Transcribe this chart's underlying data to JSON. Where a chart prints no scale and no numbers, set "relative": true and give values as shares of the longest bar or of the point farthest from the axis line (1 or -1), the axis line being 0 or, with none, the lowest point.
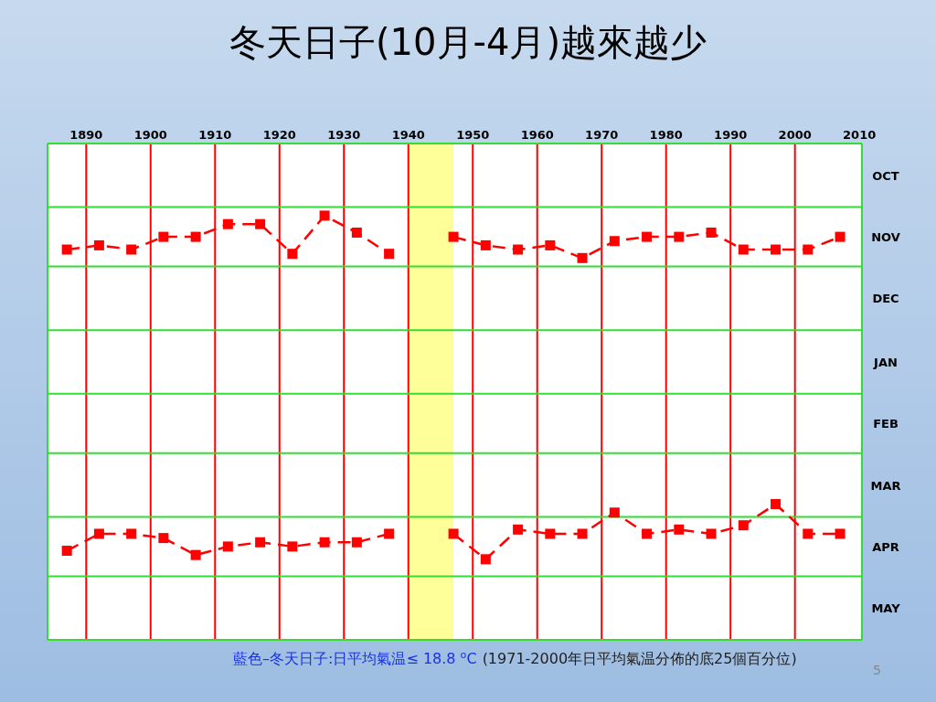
{
  "chart_data": {
    "type": "line",
    "title": "冬天日子(10月-4月)越來越少",
    "relative": true,
    "series": [
      {
        "color": "#ff0000",
        "x": [
          1887,
          1892,
          1897,
          1902,
          1907,
          1912,
          1917,
          1922,
          1927,
          1932,
          1937
        ],
        "values": [
          0.92,
          0.93,
          0.92,
          0.95,
          0.95,
          0.98,
          0.98,
          0.91,
          1,
          0.96,
          0.91
        ]
      },
      {
        "color": "#ff0000",
        "x": [
          1947,
          1952,
          1957,
          1962,
          1967,
          1972,
          1977,
          1982,
          1987,
          1992,
          1997,
          2002,
          2007
        ],
        "values": [
          0.95,
          0.93,
          0.92,
          0.93,
          0.9,
          0.94,
          0.95,
          0.95,
          0.96,
          0.92,
          0.92,
          0.92,
          0.95
        ]
      },
      {
        "color": "#ff0000",
        "x": [
          1887,
          1892,
          1897,
          1902,
          1907,
          1912,
          1917,
          1922,
          1927,
          1932,
          1937
        ],
        "values": [
          0.21,
          0.25,
          0.25,
          0.24,
          0.2,
          0.22,
          0.23,
          0.22,
          0.23,
          0.23,
          0.25
        ]
      },
      {
        "color": "#ff0000",
        "x": [
          1947,
          1952,
          1957,
          1962,
          1967,
          1972,
          1977,
          1982,
          1987,
          1992,
          1997,
          2002,
          2007
        ],
        "values": [
          0.25,
          0.19,
          0.26,
          0.25,
          0.25,
          0.3,
          0.25,
          0.26,
          0.25,
          0.27,
          0.32,
          0.25,
          0.25
        ]
      }
    ],
    "marker": "square",
    "line_style": "dashed",
    "xlim": [
      1884,
      2010.4
    ],
    "xticks": [
      1890,
      1900,
      1910,
      1920,
      1930,
      1940,
      1950,
      1960,
      1970,
      1980,
      1990,
      2000,
      2010
    ],
    "ref_lines": [
      {
        "axis": "x",
        "value": 1890,
        "color": "#ff0000"
      },
      {
        "axis": "x",
        "value": 1900,
        "color": "#ff0000"
      },
      {
        "axis": "x",
        "value": 1910,
        "color": "#ff0000"
      },
      {
        "axis": "x",
        "value": 1920,
        "color": "#ff0000"
      },
      {
        "axis": "x",
        "value": 1930,
        "color": "#ff0000"
      },
      {
        "axis": "x",
        "value": 1940,
        "color": "#ff0000"
      },
      {
        "axis": "x",
        "value": 1950,
        "color": "#ff0000"
      },
      {
        "axis": "x",
        "value": 1960,
        "color": "#ff0000"
      },
      {
        "axis": "x",
        "value": 1970,
        "color": "#ff0000"
      },
      {
        "axis": "x",
        "value": 1980,
        "color": "#ff0000"
      },
      {
        "axis": "x",
        "value": 1990,
        "color": "#ff0000"
      },
      {
        "axis": "x",
        "value": 2000,
        "color": "#ff0000"
      },
      {
        "axis": "y",
        "value": 1.17,
        "color": "#33dd33"
      },
      {
        "axis": "y",
        "value": 1.02,
        "color": "#33dd33"
      },
      {
        "axis": "y",
        "value": 0.88,
        "color": "#33dd33"
      },
      {
        "axis": "y",
        "value": 0.73,
        "color": "#33dd33"
      },
      {
        "axis": "y",
        "value": 0.58,
        "color": "#33dd33"
      },
      {
        "axis": "y",
        "value": 0.44,
        "color": "#33dd33"
      },
      {
        "axis": "y",
        "value": 0.29,
        "color": "#33dd33"
      },
      {
        "axis": "y",
        "value": 0.15,
        "color": "#33dd33"
      },
      {
        "axis": "y",
        "value": 0,
        "color": "#33dd33"
      }
    ],
    "bands": [
      {
        "axis": "x",
        "from": 1940,
        "to": 1947,
        "color": "#ffff99"
      },
      {
        "axis": "y",
        "from": 1.02,
        "to": 1.17,
        "label": "OCT",
        "color": "#ffffff"
      },
      {
        "axis": "y",
        "from": 0.88,
        "to": 1.02,
        "label": "NOV",
        "color": "#ffffff"
      },
      {
        "axis": "y",
        "from": 0.73,
        "to": 0.88,
        "label": "DEC",
        "color": "#ffffff"
      },
      {
        "axis": "y",
        "from": 0.58,
        "to": 0.73,
        "label": "JAN",
        "color": "#ffffff"
      },
      {
        "axis": "y",
        "from": 0.44,
        "to": 0.58,
        "label": "FEB",
        "color": "#ffffff"
      },
      {
        "axis": "y",
        "from": 0.29,
        "to": 0.44,
        "label": "MAR",
        "color": "#ffffff"
      },
      {
        "axis": "y",
        "from": 0.15,
        "to": 0.29,
        "label": "APR",
        "color": "#ffffff"
      },
      {
        "axis": "y",
        "from": 0,
        "to": 0.15,
        "label": "MAY",
        "color": "#ffffff"
      }
    ],
    "annotations": [
      "藍色–冬天日子:日平均氣温≤ 18.8 $^{o}$C",
      "(1971-2000年日平均氣温分佈的底25個百分位)",
      "5"
    ]
  }
}
